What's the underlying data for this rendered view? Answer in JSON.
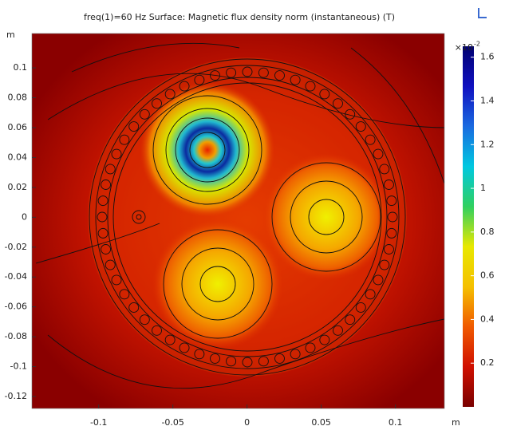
{
  "chart_data": {
    "type": "surface",
    "title": "freq(1)=60 Hz   Surface: Magnetic flux density norm (instantaneous) (T)",
    "x_unit": "m",
    "y_unit": "m",
    "xlim": [
      -0.145,
      0.133
    ],
    "ylim": [
      -0.128,
      0.123
    ],
    "xticks": [
      -0.1,
      -0.05,
      0,
      0.05,
      0.1
    ],
    "yticks": [
      0.1,
      0.08,
      0.06,
      0.04,
      0.02,
      0,
      -0.02,
      -0.04,
      -0.06,
      -0.08,
      -0.1,
      -0.12
    ],
    "colorbar": {
      "multiplier": "×10",
      "exponent": "-2",
      "clim": [
        0,
        1.65
      ],
      "ticks": [
        0.2,
        0.4,
        0.6,
        0.8,
        1,
        1.2,
        1.4,
        1.6
      ],
      "colors": [
        "#7a0000",
        "#d01000",
        "#f05a00",
        "#f5c000",
        "#e8e800",
        "#30d060",
        "#00c8e0",
        "#1a6ae0",
        "#1010c0",
        "#000070"
      ]
    }
  }
}
